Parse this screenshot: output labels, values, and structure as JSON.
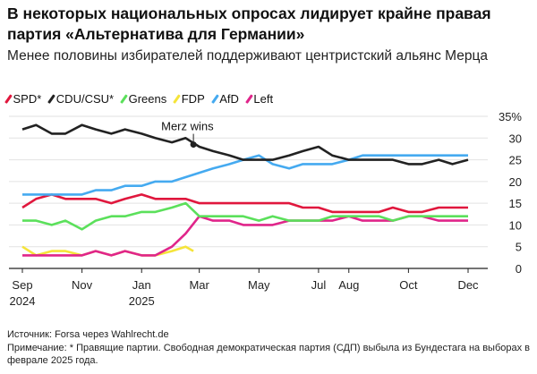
{
  "title": "В некоторых национальных опросах лидирует крайне правая партия «Альтернатива для Германии»",
  "subtitle": "Менее половины избирателей поддерживают центристский альянс Мерца",
  "footer": {
    "source": "Источник: Forsa через Wahlrecht.de",
    "note": "Примечание: * Правящие партии. Свободная демократическая партия (СДП) выбыла из Бундестага на выборах в феврале 2025 года."
  },
  "chart_data": {
    "type": "line",
    "title": "В некоторых национальных опросах лидирует крайне правая партия «Альтернатива для Германии»",
    "xlabel": "",
    "ylabel": "",
    "ylim": [
      0,
      35
    ],
    "xlim": [
      "2024-09-01",
      "2025-12-01"
    ],
    "y_ticks": [
      "35%",
      "30",
      "25",
      "20",
      "15",
      "10",
      "5",
      "0"
    ],
    "y_tick_values": [
      35,
      30,
      25,
      20,
      15,
      10,
      5,
      0
    ],
    "x_ticks": [
      {
        "date": "2024-09-01",
        "label": "Sep",
        "sub": "2024"
      },
      {
        "date": "2024-11-01",
        "label": "Nov",
        "sub": ""
      },
      {
        "date": "2025-01-01",
        "label": "Jan",
        "sub": "2025"
      },
      {
        "date": "2025-03-01",
        "label": "Mar",
        "sub": ""
      },
      {
        "date": "2025-05-01",
        "label": "May",
        "sub": ""
      },
      {
        "date": "2025-07-01",
        "label": "Jul",
        "sub": ""
      },
      {
        "date": "2025-08-01",
        "label": "Aug",
        "sub": ""
      },
      {
        "date": "2025-10-01",
        "label": "Oct",
        "sub": ""
      },
      {
        "date": "2025-12-01",
        "label": "Dec",
        "sub": ""
      }
    ],
    "grid": true,
    "legend_placement": "top-left",
    "x": [
      "2024-09-01",
      "2024-09-15",
      "2024-10-01",
      "2024-10-15",
      "2024-11-01",
      "2024-11-15",
      "2024-12-01",
      "2024-12-15",
      "2025-01-01",
      "2025-01-15",
      "2025-02-01",
      "2025-02-15",
      "2025-03-01",
      "2025-03-15",
      "2025-04-01",
      "2025-04-15",
      "2025-05-01",
      "2025-05-15",
      "2025-06-01",
      "2025-06-15",
      "2025-07-01",
      "2025-07-15",
      "2025-08-01",
      "2025-08-15",
      "2025-09-01",
      "2025-09-15",
      "2025-10-01",
      "2025-10-15",
      "2025-11-01",
      "2025-11-15",
      "2025-12-01"
    ],
    "series": [
      {
        "name": "SPD*",
        "color": "#e0173d",
        "values": [
          14,
          16,
          17,
          16,
          16,
          16,
          15,
          16,
          17,
          16,
          16,
          16,
          15,
          15,
          15,
          15,
          15,
          15,
          15,
          14,
          14,
          13,
          13,
          13,
          13,
          14,
          13,
          13,
          14,
          14,
          14
        ]
      },
      {
        "name": "CDU/CSU*",
        "color": "#222222",
        "values": [
          32,
          33,
          31,
          31,
          33,
          32,
          31,
          32,
          31,
          30,
          29,
          30,
          28,
          27,
          26,
          25,
          25,
          25,
          26,
          27,
          28,
          26,
          25,
          25,
          25,
          25,
          24,
          24,
          25,
          24,
          25
        ]
      },
      {
        "name": "Greens",
        "color": "#5be05b",
        "values": [
          11,
          11,
          10,
          11,
          9,
          11,
          12,
          12,
          13,
          13,
          14,
          15,
          12,
          12,
          12,
          12,
          11,
          12,
          11,
          11,
          11,
          12,
          12,
          12,
          12,
          11,
          12,
          12,
          12,
          12,
          12
        ]
      },
      {
        "name": "FDP",
        "color": "#f5e43a",
        "values": [
          5,
          3,
          4,
          4,
          3,
          4,
          3,
          4,
          3,
          3,
          4,
          5,
          null,
          null,
          null,
          null,
          null,
          null,
          null,
          null,
          null,
          null,
          null,
          null,
          null,
          null,
          null,
          null,
          null,
          null,
          null
        ]
      },
      {
        "name": "AfD",
        "color": "#45aaf0",
        "values": [
          17,
          17,
          17,
          17,
          17,
          18,
          18,
          19,
          19,
          20,
          20,
          21,
          22,
          23,
          24,
          25,
          26,
          24,
          23,
          24,
          24,
          24,
          25,
          26,
          26,
          26,
          26,
          26,
          26,
          26,
          26
        ]
      },
      {
        "name": "Left",
        "color": "#e0258a",
        "values": [
          3,
          3,
          3,
          3,
          3,
          4,
          3,
          4,
          3,
          3,
          5,
          8,
          12,
          11,
          11,
          10,
          10,
          10,
          11,
          11,
          11,
          11,
          12,
          11,
          11,
          11,
          12,
          12,
          11,
          11,
          11
        ]
      }
    ],
    "annotations": [
      {
        "text": "Merz wins",
        "date": "2025-02-23",
        "value": 28.5
      }
    ]
  }
}
